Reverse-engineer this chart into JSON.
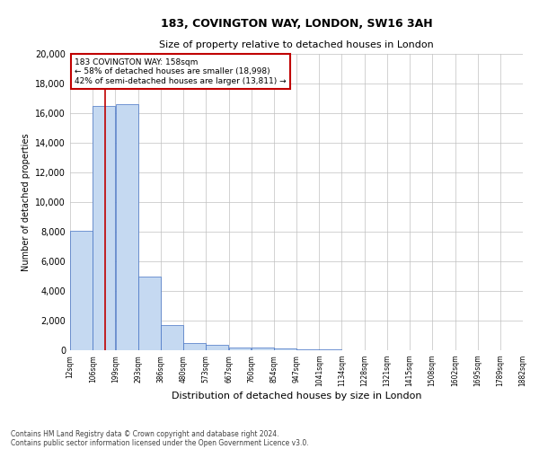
{
  "title1": "183, COVINGTON WAY, LONDON, SW16 3AH",
  "title2": "Size of property relative to detached houses in London",
  "xlabel": "Distribution of detached houses by size in London",
  "ylabel": "Number of detached properties",
  "annotation_title": "183 COVINGTON WAY: 158sqm",
  "annotation_line1": "← 58% of detached houses are smaller (18,998)",
  "annotation_line2": "42% of semi-detached houses are larger (13,811) →",
  "footnote1": "Contains HM Land Registry data © Crown copyright and database right 2024.",
  "footnote2": "Contains public sector information licensed under the Open Government Licence v3.0.",
  "property_size_sqm": 158,
  "bar_left_edges": [
    12,
    106,
    199,
    293,
    386,
    480,
    573,
    667,
    760,
    854,
    947,
    1041,
    1134,
    1228,
    1321,
    1415,
    1508,
    1602,
    1695,
    1789
  ],
  "bar_widths": [
    94,
    93,
    94,
    93,
    94,
    93,
    94,
    93,
    94,
    93,
    94,
    93,
    94,
    93,
    94,
    93,
    94,
    93,
    94,
    93
  ],
  "bar_heights": [
    8050,
    16500,
    16600,
    5000,
    1700,
    500,
    370,
    200,
    170,
    100,
    60,
    40,
    25,
    15,
    10,
    8,
    5,
    4,
    3,
    2
  ],
  "tick_labels": [
    "12sqm",
    "106sqm",
    "199sqm",
    "293sqm",
    "386sqm",
    "480sqm",
    "573sqm",
    "667sqm",
    "760sqm",
    "854sqm",
    "947sqm",
    "1041sqm",
    "1134sqm",
    "1228sqm",
    "1321sqm",
    "1415sqm",
    "1508sqm",
    "1602sqm",
    "1695sqm",
    "1789sqm",
    "1882sqm"
  ],
  "bar_color": "#c5d9f1",
  "bar_edge_color": "#4472c4",
  "vline_color": "#c00000",
  "annotation_box_color": "#c00000",
  "grid_color": "#c0c0c0",
  "background_color": "#ffffff",
  "ylim": [
    0,
    20000
  ],
  "yticks": [
    0,
    2000,
    4000,
    6000,
    8000,
    10000,
    12000,
    14000,
    16000,
    18000,
    20000
  ]
}
